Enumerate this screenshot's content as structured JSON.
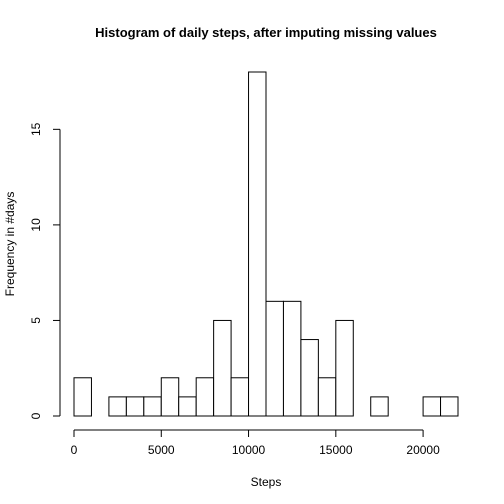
{
  "chart_data": {
    "type": "bar",
    "title": "Histogram of daily steps, after imputing missing values",
    "xlabel": "Steps",
    "ylabel": "Frequency in #days",
    "bin_width": 1000,
    "bin_starts": [
      0,
      1000,
      2000,
      3000,
      4000,
      5000,
      6000,
      7000,
      8000,
      9000,
      10000,
      11000,
      12000,
      13000,
      14000,
      15000,
      16000,
      17000,
      18000,
      19000,
      20000,
      21000
    ],
    "values": [
      2,
      0,
      1,
      1,
      1,
      2,
      1,
      2,
      5,
      2,
      18,
      6,
      6,
      4,
      2,
      5,
      0,
      1,
      0,
      0,
      1,
      1
    ],
    "xlim": [
      0,
      22000
    ],
    "ylim": [
      0,
      18
    ],
    "xticks": [
      0,
      5000,
      10000,
      15000,
      20000
    ],
    "xtick_labels": [
      "0",
      "5000",
      "10000",
      "15000",
      "20000"
    ],
    "yticks": [
      0,
      5,
      10,
      15
    ],
    "ytick_labels": [
      "0",
      "5",
      "10",
      "15"
    ],
    "grid": false
  }
}
